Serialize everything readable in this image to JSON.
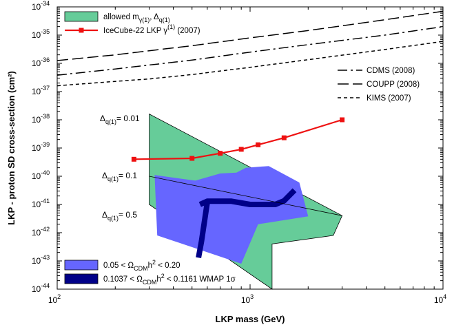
{
  "chart_data": {
    "type": "line",
    "x_scale": "log",
    "y_scale": "log",
    "xlim": [
      100,
      10000
    ],
    "ylim": [
      1e-44,
      1e-34
    ],
    "xlabel": "LKP mass (GeV)",
    "ylabel": "LKP - proton SD cross-section (cm²)",
    "x_ticks": [
      {
        "base": "10",
        "exp": "2",
        "value": 100
      },
      {
        "base": "10",
        "exp": "3",
        "value": 1000
      },
      {
        "base": "10",
        "exp": "4",
        "value": 10000
      }
    ],
    "y_ticks": [
      {
        "base": "10",
        "exp": "-34",
        "value": 1e-34
      },
      {
        "base": "10",
        "exp": "-35",
        "value": 1e-35
      },
      {
        "base": "10",
        "exp": "-36",
        "value": 1e-36
      },
      {
        "base": "10",
        "exp": "-37",
        "value": 1e-37
      },
      {
        "base": "10",
        "exp": "-38",
        "value": 1e-38
      },
      {
        "base": "10",
        "exp": "-39",
        "value": 1e-39
      },
      {
        "base": "10",
        "exp": "-40",
        "value": 1e-40
      },
      {
        "base": "10",
        "exp": "-41",
        "value": 1e-41
      },
      {
        "base": "10",
        "exp": "-42",
        "value": 1e-42
      },
      {
        "base": "10",
        "exp": "-43",
        "value": 1e-43
      },
      {
        "base": "10",
        "exp": "-44",
        "value": 1e-44
      }
    ],
    "series": [
      {
        "name": "IceCube-22 LKP γ(1) (2007)",
        "color": "#ee1111",
        "style": "solid-with-square-markers",
        "points": [
          [
            250,
            4e-40
          ],
          [
            500,
            4.3e-40
          ],
          [
            700,
            6.5e-40
          ],
          [
            900,
            9e-40
          ],
          [
            1100,
            1.3e-39
          ],
          [
            1500,
            2.3e-39
          ],
          [
            3000,
            1e-38
          ]
        ]
      },
      {
        "name": "CDMS (2008)",
        "color": "#000000",
        "style": "long-dash-dot",
        "points": [
          [
            100,
            3.8e-37
          ],
          [
            200,
            6.3e-37
          ],
          [
            300,
            8.7e-37
          ],
          [
            500,
            1.3e-36
          ],
          [
            1000,
            2.5e-36
          ],
          [
            2000,
            4.6e-36
          ],
          [
            5000,
            1e-35
          ],
          [
            10000,
            2e-35
          ]
        ]
      },
      {
        "name": "COUPP (2008)",
        "color": "#000000",
        "style": "long-dash",
        "points": [
          [
            100,
            1.25e-36
          ],
          [
            200,
            2e-36
          ],
          [
            300,
            2.8e-36
          ],
          [
            500,
            4.2e-36
          ],
          [
            1000,
            8e-36
          ],
          [
            2000,
            1.45e-35
          ],
          [
            5000,
            3.5e-35
          ],
          [
            10000,
            7e-35
          ]
        ]
      },
      {
        "name": "KIMS (2007)",
        "color": "#000000",
        "style": "short-dash",
        "points": [
          [
            100,
            1.6e-37
          ],
          [
            200,
            2.3e-37
          ],
          [
            300,
            2.8e-37
          ],
          [
            500,
            4e-37
          ],
          [
            1000,
            7.2e-37
          ],
          [
            2000,
            1.35e-36
          ],
          [
            5000,
            3.1e-36
          ],
          [
            10000,
            6e-36
          ]
        ]
      }
    ],
    "regions": [
      {
        "name": "allowed mγ(1), Δq(1)",
        "color": "#66cc99",
        "polygon": [
          [
            300,
            1.6e-38
          ],
          [
            3000,
            4e-42
          ],
          [
            2700,
            8e-43
          ],
          [
            1300,
            4e-43
          ],
          [
            1300,
            1e-44
          ],
          [
            300,
            1e-41
          ]
        ]
      },
      {
        "name": "0.05 < ΩCDMh² < 0.20",
        "color": "#6666ff",
        "polygon": [
          [
            320,
            1.1e-40
          ],
          [
            520,
            7e-41
          ],
          [
            700,
            1.25e-40
          ],
          [
            850,
            1.35e-40
          ],
          [
            950,
            2e-40
          ],
          [
            1250,
            2.3e-40
          ],
          [
            1800,
            6e-41
          ],
          [
            2000,
            3.8e-42
          ],
          [
            1100,
            2e-42
          ],
          [
            900,
            8e-44
          ],
          [
            330,
            8e-43
          ]
        ]
      },
      {
        "name": "0.1037 < ΩCDMh² < 0.1161 WMAP 1σ",
        "color": "#000088",
        "polylines": [
          [
            [
              550,
              1e-41
            ],
            [
              600,
              1.3e-41
            ],
            [
              800,
              1.3e-41
            ],
            [
              1000,
              1e-41
            ],
            [
              1350,
              1e-41
            ],
            [
              1500,
              1.35e-41
            ],
            [
              1700,
              3.2e-41
            ]
          ],
          [
            [
              600,
              1.2e-41
            ],
            [
              560,
              5e-43
            ],
            [
              540,
              1.3e-43
            ]
          ]
        ]
      }
    ],
    "annotations": [
      {
        "prefix": "Δ",
        "sub": "q(1)",
        "suffix": "= 0.01"
      },
      {
        "prefix": "Δ",
        "sub": "q(1)",
        "suffix": "= 0.1"
      },
      {
        "prefix": "Δ",
        "sub": "q(1)",
        "suffix": "= 0.5"
      }
    ],
    "legend_top": [
      {
        "type": "box",
        "color": "#66cc99",
        "label_main": "allowed m",
        "label_sub1": "γ(1)",
        "label_mid": ", Δ",
        "label_sub2": "q(1)"
      },
      {
        "type": "line-marker",
        "color": "#ee1111",
        "label_main": "IceCube-22 LKP γ",
        "label_sup": "(1)",
        "label_end": " (2007)"
      }
    ],
    "legend_right": [
      {
        "style": "long-dash-dot",
        "label": "CDMS (2008)"
      },
      {
        "style": "long-dash",
        "label": "COUPP (2008)"
      },
      {
        "style": "short-dash",
        "label": "KIMS (2007)"
      }
    ],
    "legend_bottom": [
      {
        "color": "#6666ff",
        "label_a": "0.05 < Ω",
        "label_sub": "CDM",
        "label_b": "h",
        "label_sup": "2",
        "label_c": " < 0.20"
      },
      {
        "color": "#000088",
        "label_a": "0.1037 < Ω",
        "label_sub": "CDM",
        "label_b": "h",
        "label_sup": "2",
        "label_c": " < 0.1161 WMAP 1σ"
      }
    ]
  }
}
